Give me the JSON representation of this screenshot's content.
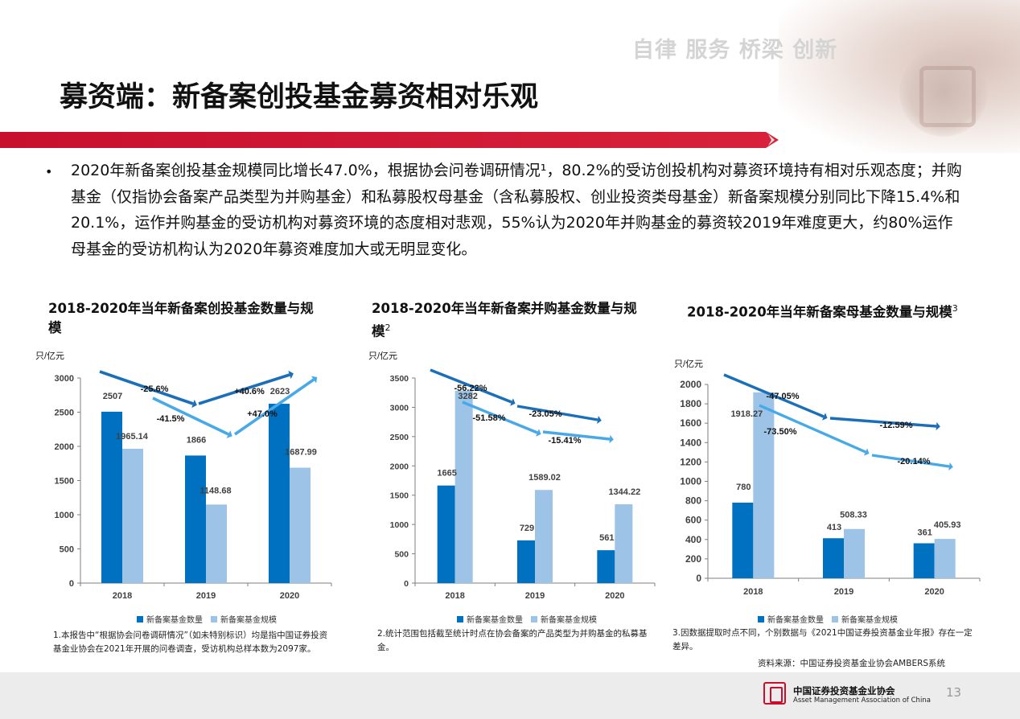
{
  "header": {
    "slogan": "自律 服务 桥梁 创新",
    "title": "募资端：新备案创投基金募资相对乐观"
  },
  "colors": {
    "accent_red": "#c8102e",
    "dark_blue": "#0070c0",
    "light_blue": "#9dc3e6",
    "arrow_light": "#47a9e8"
  },
  "bullet": "2020年新备案创投基金规模同比增长47.0%，根据协会问卷调研情况¹，80.2%的受访创投机构对募资环境持有相对乐观态度；并购基金（仅指协会备案产品类型为并购基金）和私募股权母基金（含私募股权、创业投资类母基金）新备案规模分别同比下降15.4%和20.1%，运作并购基金的受访机构对募资环境的态度相对悲观，55%认为2020年并购基金的募资较2019年难度更大，约80%运作母基金的受访机构认为2020年募资难度加大或无明显变化。",
  "legend": {
    "count": "新备案基金数量",
    "scale": "新备案基金规模"
  },
  "chart_titles": {
    "c1": "2018-2020年当年新备案创投基金数量与规模",
    "c2": "2018-2020年当年新备案并购基金数量与规模",
    "c2_sup": "2",
    "c3": "2018-2020年当年新备案母基金数量与规模",
    "c3_sup": "3"
  },
  "chart_data": [
    {
      "type": "bar",
      "categories": [
        "2018",
        "2019",
        "2020"
      ],
      "ylabel": "只/亿元",
      "ylim": [
        0,
        3000
      ],
      "yticks": [
        0,
        500,
        1000,
        1500,
        2000,
        2500,
        3000
      ],
      "series": [
        {
          "name": "新备案基金数量",
          "values": [
            2507,
            1866,
            2623
          ],
          "labels": [
            "2507",
            "1866",
            "2623"
          ]
        },
        {
          "name": "新备案基金规模",
          "values": [
            1965.14,
            1148.68,
            1687.99
          ],
          "labels": [
            "1965.14",
            "1148.68",
            "1687.99"
          ]
        }
      ],
      "annotations": [
        "-25.6%",
        "+40.6%",
        "-41.5%",
        "+47.0%"
      ]
    },
    {
      "type": "bar",
      "categories": [
        "2018",
        "2019",
        "2020"
      ],
      "ylabel": "只/亿元",
      "ylim": [
        0,
        3500
      ],
      "yticks": [
        0,
        500,
        1000,
        1500,
        2000,
        2500,
        3000,
        3500
      ],
      "series": [
        {
          "name": "新备案基金数量",
          "values": [
            1665,
            729,
            561
          ],
          "labels": [
            "1665",
            "729",
            "561"
          ]
        },
        {
          "name": "新备案基金规模",
          "values": [
            3282,
            1589.02,
            1344.22
          ],
          "labels": [
            "3282",
            "1589.02",
            "1344.22"
          ]
        }
      ],
      "annotations": [
        "-56.22%",
        "-23.05%",
        "-51.58%",
        "-15.41%"
      ]
    },
    {
      "type": "bar",
      "categories": [
        "2018",
        "2019",
        "2020"
      ],
      "ylabel": "只/亿元",
      "ylim": [
        0,
        2000
      ],
      "yticks": [
        0,
        200,
        400,
        600,
        800,
        1000,
        1200,
        1400,
        1600,
        1800,
        2000
      ],
      "series": [
        {
          "name": "新备案基金数量",
          "values": [
            780,
            413,
            361
          ],
          "labels": [
            "780",
            "413",
            "361"
          ]
        },
        {
          "name": "新备案基金规模",
          "values": [
            1918.27,
            508.33,
            405.93
          ],
          "labels": [
            "1918.27",
            "508.33",
            "405.93"
          ]
        }
      ],
      "annotations": [
        "-47.05%",
        "-12.59%",
        "-73.50%",
        "-20.14%"
      ]
    }
  ],
  "notes": {
    "n1": "1.本报告中“根据协会问卷调研情况”（如未特别标识）均是指中国证券投资基金业协会在2021年开展的问卷调查，受访机构总样本数为2097家。",
    "n2": "2.统计范围包括截至统计时点在协会备案的产品类型为并购基金的私募基金。",
    "n3": "3.因数据提取时点不同，个别数据与《2021中国证券投资基金业年报》存在一定差异。"
  },
  "source": "资料来源：中国证券投资基金业协会AMBERS系统",
  "footer": {
    "org_cn": "中国证券投资基金业协会",
    "org_en": "Asset Management Association of China",
    "page": "13"
  }
}
